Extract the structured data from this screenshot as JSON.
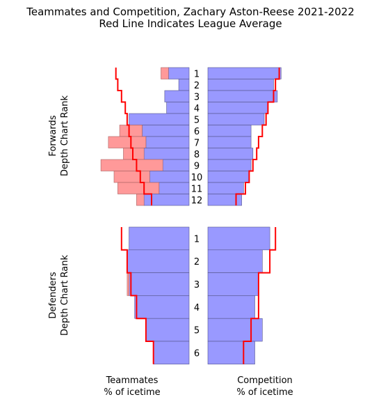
{
  "chart_data": {
    "type": "bar",
    "title": "Teammates and Competition, Zachary Aston-Reese 2021-2022",
    "subtitle": "Red Line Indicates League Average",
    "colors": {
      "bar": "#9999ff",
      "bar_edge": "#55558a",
      "excess": "#ff9999",
      "excess_edge": "#a86060",
      "average_line": "#ff0000"
    },
    "forwards": {
      "ylabel_line1": "Forwards",
      "ylabel_line2": "Depth Chart Rank",
      "ranks": [
        "1",
        "2",
        "3",
        "4",
        "5",
        "6",
        "7",
        "8",
        "9",
        "10",
        "11",
        "12"
      ],
      "teammates": [
        11,
        5.5,
        13,
        12,
        32,
        25,
        23,
        24,
        14,
        21,
        16,
        24
      ],
      "teammates_extra": [
        4,
        0,
        0,
        0,
        0,
        12,
        20,
        11,
        33,
        19,
        22,
        4
      ],
      "teammates_avg": [
        39,
        38,
        36,
        34,
        33,
        32,
        31,
        30,
        28,
        26,
        24,
        20
      ],
      "competition": [
        39,
        35,
        37,
        32,
        30,
        23,
        23,
        24,
        23,
        22,
        19,
        18
      ],
      "competition_avg": [
        38,
        36,
        35,
        32,
        31,
        29,
        27,
        26,
        24,
        22,
        20,
        15
      ]
    },
    "defenders": {
      "ylabel_line1": "Defenders",
      "ylabel_line2": "Depth Chart Rank",
      "ranks": [
        "1",
        "2",
        "3",
        "4",
        "5",
        "6"
      ],
      "teammates": [
        32,
        33,
        32,
        29,
        23,
        19
      ],
      "teammates_extra": [
        0,
        0,
        1,
        0,
        0,
        0
      ],
      "teammates_avg": [
        36,
        33,
        31,
        28,
        23,
        19
      ],
      "competition": [
        33,
        29,
        27,
        25,
        29,
        25
      ],
      "competition_avg": [
        36,
        33,
        27,
        27,
        23,
        19
      ]
    },
    "xlabel_left_line1": "Teammates",
    "xlabel_left_line2": "% of icetime",
    "xlabel_right_line1": "Competition",
    "xlabel_right_line2": "% of icetime"
  }
}
